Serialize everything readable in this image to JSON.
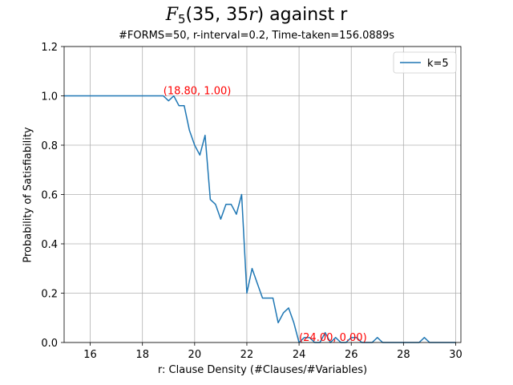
{
  "chart_data": {
    "type": "line",
    "title_prefix": "F",
    "title_sub": "5",
    "title_mid": "(35, 35",
    "title_var": "r",
    "title_suffix": ") against r",
    "subtitle": "#FORMS=50, r-interval=0.2, Time-taken=156.0889s",
    "xlabel": "r: Clause Density (#Clauses/#Variables)",
    "ylabel": "Probability of Satisfiability",
    "xlim": [
      15,
      30.2
    ],
    "ylim": [
      0,
      1.2
    ],
    "xticks": [
      "16",
      "18",
      "20",
      "22",
      "24",
      "26",
      "28",
      "30"
    ],
    "yticks": [
      "0.0",
      "0.2",
      "0.4",
      "0.6",
      "0.8",
      "1.0",
      "1.2"
    ],
    "grid": true,
    "legend_position": "top-right",
    "series": [
      {
        "name": "k=5",
        "color": "#1f77b4",
        "x": [
          15.0,
          15.2,
          15.4,
          15.6,
          15.8,
          16.0,
          16.2,
          16.4,
          16.6,
          16.8,
          17.0,
          17.2,
          17.4,
          17.6,
          17.8,
          18.0,
          18.2,
          18.4,
          18.6,
          18.8,
          19.0,
          19.2,
          19.4,
          19.6,
          19.8,
          20.0,
          20.2,
          20.4,
          20.6,
          20.8,
          21.0,
          21.2,
          21.4,
          21.6,
          21.8,
          22.0,
          22.2,
          22.4,
          22.6,
          22.8,
          23.0,
          23.2,
          23.4,
          23.6,
          23.8,
          24.0,
          24.2,
          24.4,
          24.6,
          24.8,
          25.0,
          25.2,
          25.4,
          25.6,
          25.8,
          26.0,
          26.2,
          26.4,
          26.6,
          26.8,
          27.0,
          27.2,
          27.4,
          27.6,
          27.8,
          28.0,
          28.2,
          28.4,
          28.6,
          28.8,
          29.0,
          29.2,
          29.4,
          29.6,
          29.8,
          30.0
        ],
        "y": [
          1.0,
          1.0,
          1.0,
          1.0,
          1.0,
          1.0,
          1.0,
          1.0,
          1.0,
          1.0,
          1.0,
          1.0,
          1.0,
          1.0,
          1.0,
          1.0,
          1.0,
          1.0,
          1.0,
          1.0,
          0.98,
          1.0,
          0.96,
          0.96,
          0.86,
          0.8,
          0.76,
          0.84,
          0.58,
          0.56,
          0.5,
          0.56,
          0.56,
          0.52,
          0.6,
          0.2,
          0.3,
          0.24,
          0.18,
          0.18,
          0.18,
          0.08,
          0.12,
          0.14,
          0.08,
          0.0,
          0.02,
          0.02,
          0.0,
          0.0,
          0.04,
          0.0,
          0.02,
          0.0,
          0.0,
          0.02,
          0.02,
          0.0,
          0.0,
          0.0,
          0.02,
          0.0,
          0.0,
          0.0,
          0.0,
          0.0,
          0.0,
          0.0,
          0.0,
          0.02,
          0.0,
          0.0,
          0.0,
          0.0,
          0.0,
          0.0
        ]
      }
    ],
    "annotations": [
      {
        "text": "(18.80, 1.00)",
        "x": 18.8,
        "y": 1.0,
        "color": "#ff0000"
      },
      {
        "text": "(24.00, 0.00)",
        "x": 24.0,
        "y": 0.0,
        "color": "#ff0000"
      }
    ]
  }
}
